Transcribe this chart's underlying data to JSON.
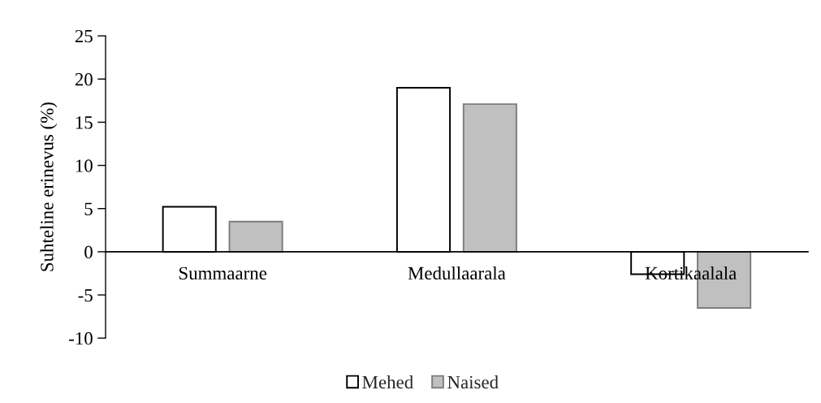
{
  "chart_data": {
    "type": "bar",
    "ylabel": "Suhteline erinevus (%)",
    "categories": [
      "Summaarne",
      "Medullaarala",
      "Kortikaalala"
    ],
    "series": [
      {
        "name": "Mehed",
        "color": "#ffffff",
        "values": [
          5.2,
          19.0,
          -2.6
        ]
      },
      {
        "name": "Naised",
        "color": "#c0c0c0",
        "values": [
          3.5,
          17.1,
          -6.5
        ]
      }
    ],
    "ylim": [
      -10,
      25
    ],
    "yticks": [
      -10,
      -5,
      0,
      5,
      10,
      15,
      20,
      25
    ],
    "grid": false,
    "legend": "bottom"
  }
}
